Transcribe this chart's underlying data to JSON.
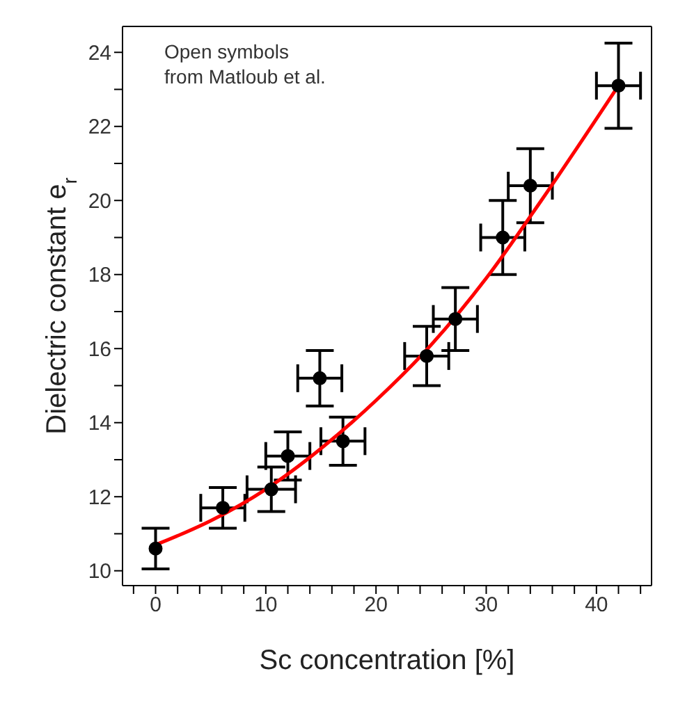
{
  "chart_data": {
    "type": "scatter",
    "xlabel": "Sc concentration [%]",
    "ylabel": "Dielectric constant e$_{r}$",
    "annotations": [
      "Open symbols\nfrom Matloub et al."
    ],
    "xlim": [
      -3,
      45
    ],
    "xticks": [
      0,
      10,
      20,
      30,
      40,
      {
        "value": -2,
        "label": null
      },
      {
        "value": 2,
        "label": null
      },
      {
        "value": 4,
        "label": null
      },
      {
        "value": 6,
        "label": null
      },
      {
        "value": 8,
        "label": null
      },
      {
        "value": 12,
        "label": null
      },
      {
        "value": 14,
        "label": null
      },
      {
        "value": 16,
        "label": null
      },
      {
        "value": 18,
        "label": null
      },
      {
        "value": 22,
        "label": null
      },
      {
        "value": 24,
        "label": null
      },
      {
        "value": 26,
        "label": null
      },
      {
        "value": 28,
        "label": null
      },
      {
        "value": 32,
        "label": null
      },
      {
        "value": 34,
        "label": null
      },
      {
        "value": 36,
        "label": null
      },
      {
        "value": 38,
        "label": null
      },
      {
        "value": 42,
        "label": null
      },
      {
        "value": 44,
        "label": null
      }
    ],
    "ylim": [
      9.6,
      24.7
    ],
    "yticks": [
      10,
      12,
      14,
      16,
      18,
      20,
      22,
      24,
      {
        "value": 11,
        "label": null
      },
      {
        "value": 13,
        "label": null
      },
      {
        "value": 15,
        "label": null
      },
      {
        "value": 17,
        "label": null
      },
      {
        "value": 19,
        "label": null
      },
      {
        "value": 21,
        "label": null
      },
      {
        "value": 23,
        "label": null
      }
    ],
    "grid": false,
    "series": [
      {
        "color": "#000000",
        "marker": "circle",
        "x": [
          0,
          6.1,
          10.5,
          14.9,
          24.6,
          27.2,
          31.5,
          34,
          42
        ],
        "values": [
          10.6,
          11.7,
          12.2,
          15.2,
          15.8,
          16.8,
          19.0,
          20.4,
          23.1
        ],
        "errors": [
          0.55,
          0.55,
          0.6,
          0.75,
          0.8,
          0.85,
          1.0,
          1.0,
          1.15
        ],
        "xerrors": [
          null,
          2,
          2.2,
          2,
          2,
          2,
          2,
          2,
          2
        ]
      },
      {
        "color": "#000000",
        "marker": "circle",
        "x": [
          12,
          17
        ],
        "values": [
          13.1,
          13.5
        ],
        "errors": [
          0.65,
          0.65
        ],
        "xerrors": [
          2,
          2
        ]
      },
      {
        "type": "line",
        "color": "#ff0000",
        "marker": "none",
        "line_style": "solid",
        "x": [
          0,
          5,
          10,
          15,
          20,
          25,
          30,
          35,
          42
        ],
        "values": [
          10.7,
          11.35,
          12.2,
          13.3,
          14.6,
          16.1,
          17.9,
          20.0,
          23.1
        ]
      }
    ]
  }
}
